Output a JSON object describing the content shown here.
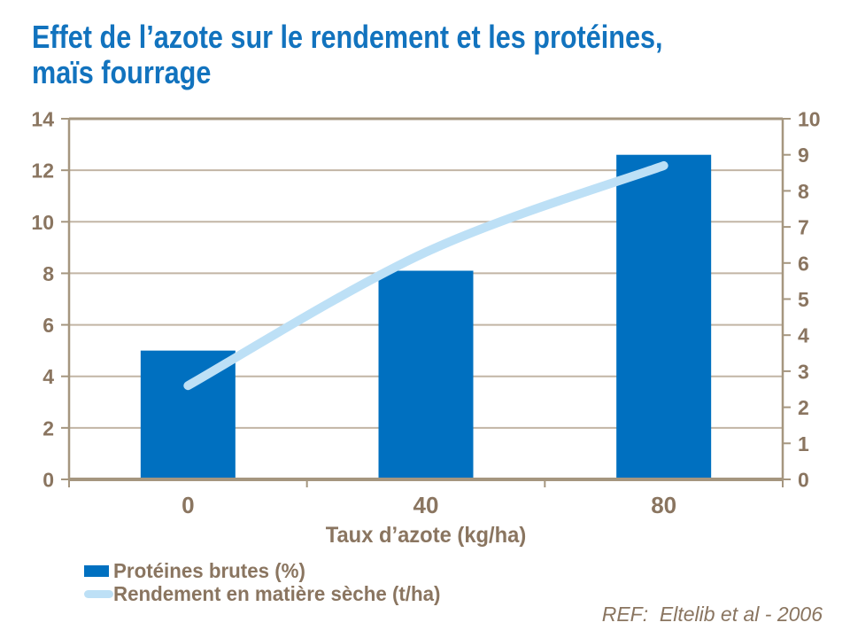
{
  "title": "Effet de l’azote sur le rendement et les protéines,\nmaïs fourrage",
  "ref_text": "REF:  Eltelib et al - 2006",
  "colors": {
    "title": "#1273BE",
    "bar": "#0070C0",
    "line": "#BDE0F6",
    "axis_text": "#8A7560",
    "grid": "#C2B5A5",
    "border": "#A5967F",
    "background": "#FFFFFF"
  },
  "chart_data": {
    "type": "bar",
    "subtype": "bar+line combo, dual axis",
    "categories": [
      "0",
      "40",
      "80"
    ],
    "series": [
      {
        "name": "Protéines brutes (%)",
        "type": "bar",
        "axis": "left",
        "values": [
          5.0,
          8.1,
          12.6
        ]
      },
      {
        "name": "Rendement en matière sèche (t/ha)",
        "type": "line",
        "axis": "right",
        "values": [
          2.6,
          6.3,
          8.7
        ]
      }
    ],
    "title": "Effet de l’azote sur le rendement et les protéines, maïs fourrage",
    "xlabel": "Taux d’azote (kg/ha)",
    "ylabel_left": "",
    "ylabel_right": "",
    "left_axis": {
      "min": 0,
      "max": 14,
      "step": 2,
      "ticks": [
        0,
        2,
        4,
        6,
        8,
        10,
        12,
        14
      ]
    },
    "right_axis": {
      "min": 0,
      "max": 10,
      "step": 1,
      "ticks": [
        0,
        1,
        2,
        3,
        4,
        5,
        6,
        7,
        8,
        9,
        10
      ]
    },
    "grid": true,
    "legend_position": "bottom-left"
  },
  "legend": {
    "items": [
      {
        "label": "Protéines brutes (%)",
        "swatch": "bar"
      },
      {
        "label": "Rendement en matière sèche (t/ha)",
        "swatch": "line"
      }
    ]
  }
}
